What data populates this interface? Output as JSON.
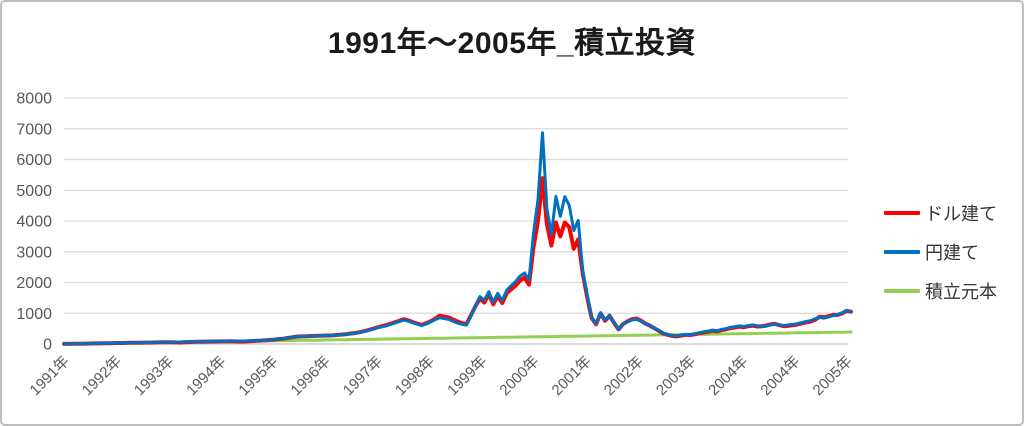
{
  "title": "1991年～2005年_積立投資",
  "colors": {
    "dollar": "#ff0000",
    "yen": "#0070c0",
    "principal": "#92d050",
    "gridline": "#d9d9d9",
    "axis_line": "#c3c3c3",
    "tick_text": "#595959",
    "title_text": "#1a1a1a",
    "frame_border": "#bdbdbd"
  },
  "chart_data": {
    "type": "line",
    "title": "1991年～2005年_積立投資",
    "grid": "horizontal",
    "legend_position": "right",
    "ylim": [
      0,
      8000
    ],
    "y_ticks": [
      0,
      1000,
      2000,
      3000,
      4000,
      5000,
      6000,
      7000,
      8000
    ],
    "x_tick_labels": [
      "1991年",
      "1992年",
      "1993年",
      "1994年",
      "1995年",
      "1996年",
      "1997年",
      "1998年",
      "1999年",
      "2000年",
      "2001年",
      "2002年",
      "2003年",
      "2004年",
      "2004年",
      "2005年"
    ],
    "x_unit": "monthly points, Jan 1991 onward",
    "series": [
      {
        "name": "ドル建て",
        "color": "#ff0000",
        "values": [
          2,
          4,
          6,
          9,
          11,
          14,
          16,
          18,
          21,
          23,
          26,
          28,
          31,
          33,
          35,
          38,
          40,
          42,
          44,
          47,
          49,
          52,
          54,
          56,
          58,
          52,
          50,
          55,
          62,
          68,
          72,
          75,
          78,
          80,
          82,
          84,
          86,
          88,
          86,
          82,
          80,
          85,
          95,
          104,
          112,
          120,
          130,
          143,
          158,
          172,
          194,
          218,
          240,
          247,
          252,
          257,
          262,
          267,
          272,
          277,
          281,
          292,
          305,
          320,
          337,
          356,
          380,
          412,
          450,
          492,
          536,
          574,
          610,
          658,
          705,
          756,
          808,
          768,
          712,
          662,
          620,
          672,
          742,
          818,
          920,
          895,
          862,
          800,
          730,
          680,
          645,
          930,
          1230,
          1480,
          1350,
          1620,
          1290,
          1560,
          1330,
          1650,
          1780,
          1900,
          2060,
          2160,
          1930,
          3150,
          4000,
          5390,
          3900,
          3200,
          3950,
          3500,
          3950,
          3800,
          3100,
          3400,
          2300,
          1520,
          850,
          640,
          1000,
          755,
          920,
          690,
          475,
          645,
          735,
          805,
          825,
          760,
          662,
          600,
          515,
          432,
          342,
          300,
          262,
          247,
          272,
          300,
          288,
          315,
          348,
          372,
          398,
          428,
          408,
          448,
          478,
          515,
          538,
          565,
          545,
          575,
          596,
          568,
          575,
          598,
          636,
          655,
          612,
          578,
          595,
          615,
          635,
          672,
          702,
          732,
          790,
          885,
          868,
          905,
          945,
          945,
          995,
          1075,
          1052
        ]
      },
      {
        "name": "円建て",
        "color": "#0070c0",
        "values": [
          2,
          4,
          7,
          9,
          12,
          14,
          17,
          19,
          22,
          24,
          27,
          30,
          33,
          35,
          37,
          40,
          42,
          45,
          47,
          50,
          52,
          55,
          58,
          60,
          62,
          64,
          66,
          69,
          71,
          74,
          76,
          79,
          81,
          84,
          86,
          88,
          90,
          93,
          95,
          97,
          99,
          102,
          105,
          109,
          116,
          124,
          133,
          146,
          160,
          175,
          196,
          220,
          242,
          248,
          252,
          258,
          262,
          268,
          272,
          276,
          280,
          290,
          302,
          316,
          332,
          350,
          372,
          402,
          438,
          478,
          520,
          556,
          590,
          636,
          680,
          730,
          780,
          742,
          688,
          640,
          600,
          650,
          718,
          790,
          852,
          828,
          800,
          742,
          680,
          640,
          612,
          900,
          1250,
          1540,
          1420,
          1700,
          1360,
          1650,
          1410,
          1750,
          1900,
          2030,
          2210,
          2310,
          2080,
          3600,
          4700,
          6870,
          4400,
          3550,
          4800,
          4150,
          4790,
          4500,
          3690,
          4020,
          2400,
          1600,
          880,
          660,
          1020,
          770,
          935,
          700,
          480,
          640,
          715,
          780,
          800,
          745,
          655,
          600,
          520,
          440,
          350,
          310,
          272,
          255,
          282,
          312,
          300,
          330,
          365,
          392,
          420,
          452,
          430,
          472,
          502,
          540,
          562,
          590,
          570,
          600,
          622,
          592,
          562,
          582,
          620,
          642,
          622,
          602,
          622,
          642,
          662,
          700,
          732,
          762,
          820,
          862,
          842,
          882,
          922,
          962,
          1012,
          1092,
          1058
        ]
      },
      {
        "name": "積立元本",
        "color": "#92d050",
        "values": [
          2,
          4,
          7,
          9,
          11,
          13,
          15,
          18,
          20,
          22,
          24,
          26,
          29,
          31,
          33,
          35,
          37,
          40,
          42,
          44,
          46,
          48,
          51,
          53,
          55,
          57,
          59,
          62,
          64,
          66,
          68,
          70,
          73,
          75,
          77,
          79,
          81,
          84,
          86,
          88,
          90,
          92,
          95,
          97,
          99,
          101,
          103,
          106,
          108,
          110,
          112,
          114,
          117,
          119,
          121,
          123,
          125,
          128,
          130,
          132,
          134,
          136,
          139,
          141,
          143,
          145,
          147,
          150,
          152,
          154,
          156,
          158,
          161,
          163,
          165,
          167,
          169,
          172,
          174,
          176,
          178,
          180,
          183,
          185,
          187,
          189,
          191,
          194,
          196,
          198,
          200,
          202,
          205,
          207,
          209,
          211,
          213,
          216,
          218,
          220,
          222,
          224,
          227,
          229,
          231,
          233,
          235,
          238,
          240,
          242,
          244,
          246,
          249,
          251,
          253,
          255,
          257,
          260,
          262,
          264,
          266,
          268,
          271,
          273,
          275,
          277,
          279,
          282,
          284,
          286,
          288,
          290,
          293,
          295,
          297,
          299,
          301,
          304,
          306,
          308,
          310,
          312,
          315,
          317,
          319,
          321,
          323,
          326,
          328,
          330,
          332,
          334,
          337,
          339,
          341,
          343,
          345,
          348,
          350,
          352,
          354,
          356,
          359,
          361,
          363,
          365,
          367,
          370,
          372,
          374,
          376,
          378,
          381,
          383,
          385,
          387,
          389
        ]
      }
    ]
  }
}
